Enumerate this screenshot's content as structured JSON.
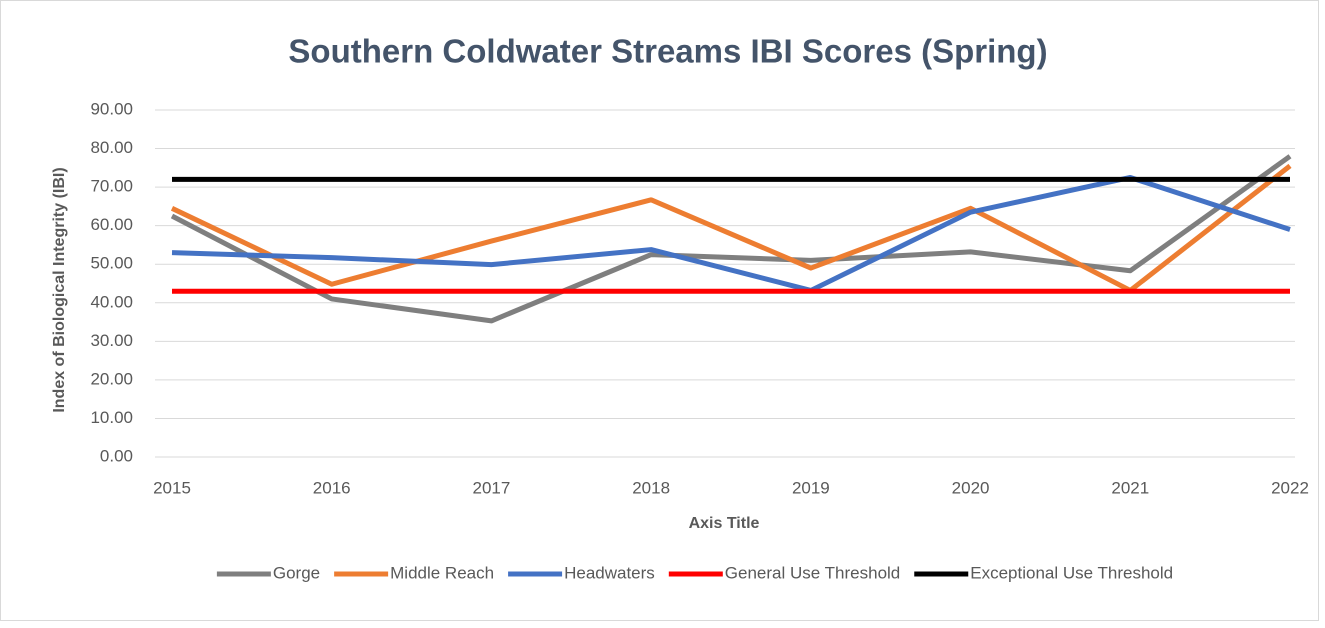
{
  "chart_data": {
    "type": "line",
    "title": "Southern Coldwater Streams IBI Scores (Spring)",
    "x_label": "Axis Title",
    "y_label": "Index of Biological Integrity (IBI)",
    "x": [
      2015,
      2016,
      2017,
      2018,
      2019,
      2020,
      2021,
      2022
    ],
    "xlim": [
      2015,
      2022
    ],
    "xticks": [
      2015,
      2016,
      2017,
      2018,
      2019,
      2020,
      2021,
      2022
    ],
    "ylim": [
      0,
      90
    ],
    "yticks": [
      {
        "value": 0,
        "label": "0.00"
      },
      {
        "value": 10,
        "label": "10.00"
      },
      {
        "value": 20,
        "label": "20.00"
      },
      {
        "value": 30,
        "label": "30.00"
      },
      {
        "value": 40,
        "label": "40.00"
      },
      {
        "value": 50,
        "label": "50.00"
      },
      {
        "value": 60,
        "label": "60.00"
      },
      {
        "value": 70,
        "label": "70.00"
      },
      {
        "value": 80,
        "label": "80.00"
      },
      {
        "value": 90,
        "label": "90.00"
      }
    ],
    "grid": true,
    "legend": "bottom",
    "series": [
      {
        "name": "Gorge",
        "color": "#7f7f7f",
        "values": [
          62.5,
          41,
          35.3,
          52.5,
          51,
          53.2,
          48.3,
          78
        ]
      },
      {
        "name": "Middle Reach",
        "color": "#ed7d31",
        "values": [
          64.5,
          44.8,
          56,
          66.7,
          49,
          64.5,
          43.2,
          75.5
        ]
      },
      {
        "name": "Headwaters",
        "color": "#4472c4",
        "values": [
          53,
          51.7,
          49.9,
          53.8,
          43.2,
          63.5,
          72.5,
          59
        ]
      },
      {
        "name": "General Use Threshold",
        "color": "#ff0000",
        "values": [
          43,
          43,
          43,
          43,
          43,
          43,
          43,
          43
        ]
      },
      {
        "name": "Exceptional Use Threshold",
        "color": "#000000",
        "values": [
          72,
          72,
          72,
          72,
          72,
          72,
          72,
          72
        ]
      }
    ]
  }
}
